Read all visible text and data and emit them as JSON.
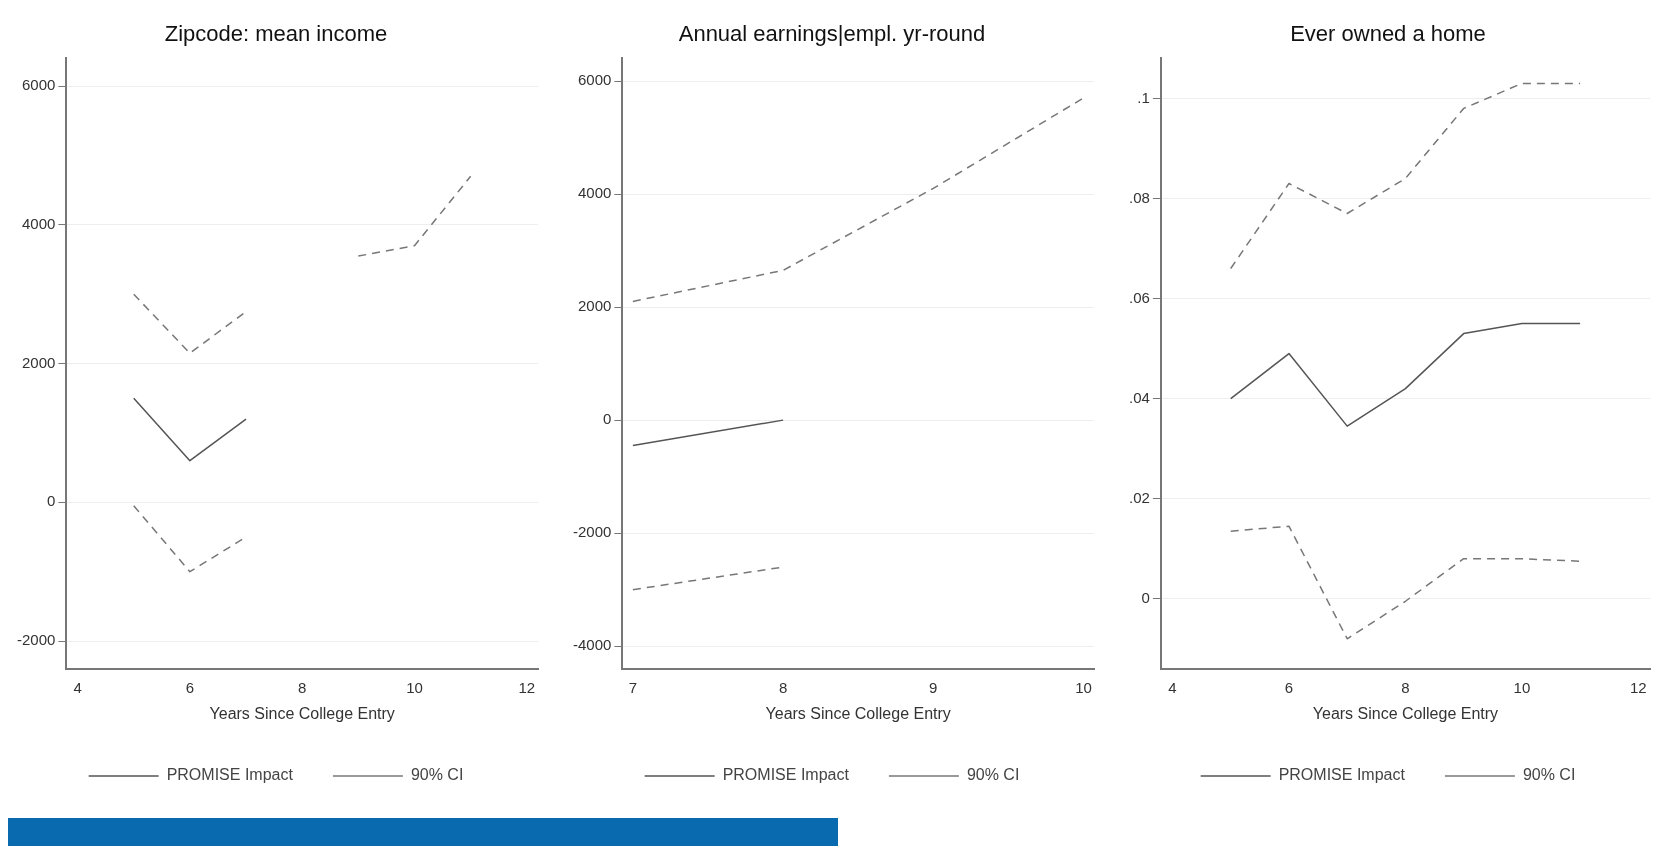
{
  "chart_data": [
    {
      "type": "line",
      "title": "Zipcode: mean income",
      "xlabel": "Years Since College Entry",
      "x": [
        5,
        6,
        7,
        8,
        9,
        10,
        11
      ],
      "series": [
        {
          "name": "PROMISE Impact",
          "color": "#555555",
          "line_style": "solid",
          "values": [
            1500,
            600,
            1200,
            null,
            null,
            null,
            null
          ]
        },
        {
          "name": "90% CI",
          "color": "#777777",
          "line_style": "dashed",
          "values": [
            3000,
            2150,
            2750,
            null,
            3550,
            3700,
            4700
          ]
        },
        {
          "color": "#777777",
          "line_style": "dashed",
          "values": [
            -50,
            -1000,
            -500,
            null,
            null,
            null,
            null
          ]
        }
      ],
      "xlim": [
        3.8,
        12.2
      ],
      "xticks": [
        4,
        6,
        8,
        10,
        12
      ],
      "ylim": [
        -2400,
        6400
      ],
      "yticks": [
        -2000,
        0,
        2000,
        4000,
        6000
      ],
      "grid": "y",
      "legend": "bottom",
      "marker": "none"
    },
    {
      "type": "line",
      "title": "Annual earnings|empl. yr-round",
      "xlabel": "Years Since College Entry",
      "x": [
        7,
        8,
        9,
        10
      ],
      "series": [
        {
          "name": "PROMISE Impact",
          "color": "#555555",
          "line_style": "solid",
          "values": [
            -450,
            0,
            null,
            null
          ]
        },
        {
          "name": "90% CI",
          "color": "#777777",
          "line_style": "dashed",
          "values": [
            2100,
            2650,
            4100,
            5700
          ]
        },
        {
          "color": "#777777",
          "line_style": "dashed",
          "values": [
            -3000,
            -2600,
            null,
            null
          ]
        }
      ],
      "xlim": [
        6.93,
        10.07
      ],
      "xticks": [
        7,
        8,
        9,
        10
      ],
      "ylim": [
        -4400,
        6400
      ],
      "yticks": [
        -4000,
        -2000,
        0,
        2000,
        4000,
        6000
      ],
      "grid": "y",
      "legend": "bottom",
      "marker": "none"
    },
    {
      "type": "line",
      "title": "Ever owned a home",
      "xlabel": "Years Since College Entry",
      "x": [
        5,
        6,
        7,
        8,
        9,
        10,
        11
      ],
      "series": [
        {
          "name": "PROMISE Impact",
          "color": "#555555",
          "line_style": "solid",
          "values": [
            0.04,
            0.049,
            0.0345,
            0.042,
            0.053,
            0.055,
            0.055
          ]
        },
        {
          "name": "90% CI",
          "color": "#777777",
          "line_style": "dashed",
          "values": [
            0.066,
            0.083,
            0.077,
            0.084,
            0.098,
            0.103,
            0.103
          ]
        },
        {
          "color": "#777777",
          "line_style": "dashed",
          "values": [
            0.0135,
            0.0145,
            -0.008,
            -0.0005,
            0.008,
            0.008,
            0.0075
          ]
        }
      ],
      "xlim": [
        3.8,
        12.2
      ],
      "xticks": [
        4,
        6,
        8,
        10,
        12
      ],
      "ylim": [
        -0.014,
        0.108
      ],
      "yticks": [
        {
          "value": 0,
          "label": "0"
        },
        {
          "value": 0.02,
          "label": ".02"
        },
        {
          "value": 0.04,
          "label": ".04"
        },
        {
          "value": 0.06,
          "label": ".06"
        },
        {
          "value": 0.08,
          "label": ".08"
        },
        {
          "value": 0.1,
          "label": ".1"
        }
      ],
      "grid": "y",
      "legend": "bottom",
      "marker": "none"
    }
  ]
}
